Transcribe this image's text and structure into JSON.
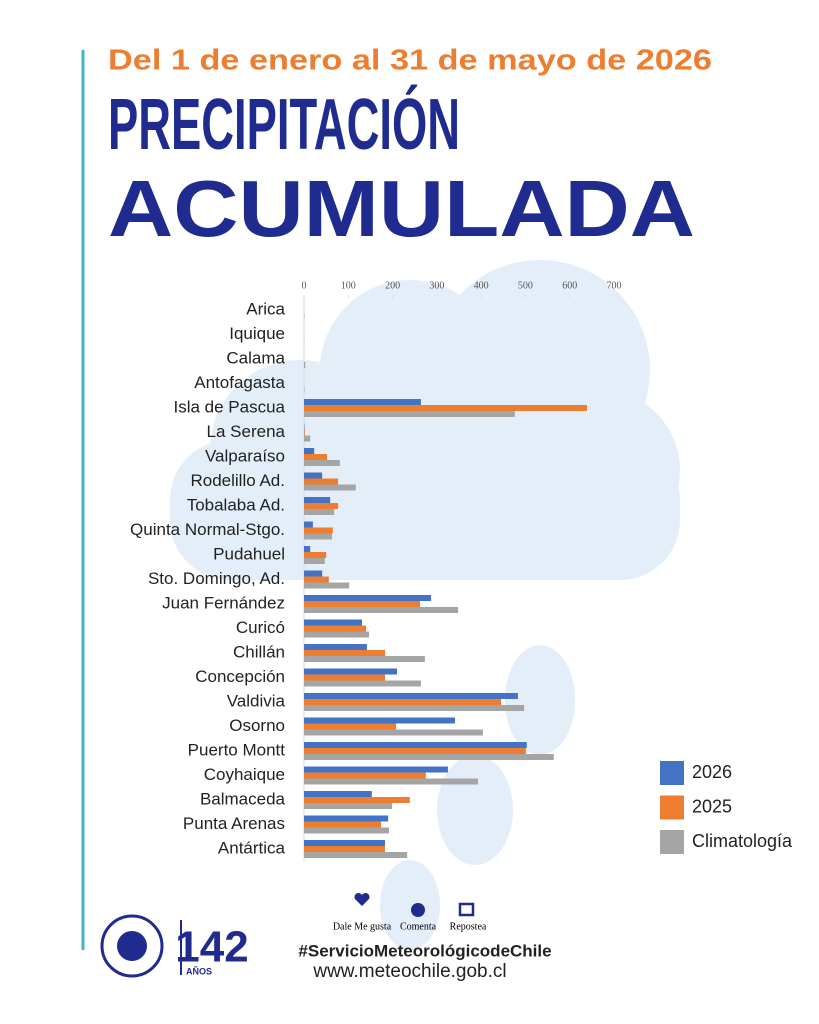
{
  "chart_data": {
    "type": "bar",
    "orientation": "horizontal",
    "subtitle": "Del 1 de enero al 31 de mayo de 2026",
    "title": "PRECIPITACIÓN",
    "title2": "ACUMULADA",
    "categories": [
      "Arica",
      "Iquique",
      "Calama",
      "Antofagasta",
      "Isla de Pascua",
      "La Serena",
      "Valparaíso",
      "Rodelillo Ad.",
      "Tobalaba Ad.",
      "Quinta Normal-Stgo.",
      "Pudahuel",
      "Sto. Domingo, Ad.",
      "Juan Fernández",
      "Curicó",
      "Chillán",
      "Concepción",
      "Valdivia",
      "Osorno",
      "Puerto Montt",
      "Coyhaique",
      "Balmaceda",
      "Punta Arenas",
      "Antártica"
    ],
    "series": [
      {
        "name": "2026",
        "color": "#4472c4",
        "values": [
          0,
          0,
          0,
          0,
          264,
          1,
          23,
          41,
          59,
          20,
          14,
          41,
          287,
          131,
          142,
          210,
          483,
          341,
          503,
          325,
          153,
          190,
          183
        ]
      },
      {
        "name": "2025",
        "color": "#ed7d31",
        "values": [
          0,
          0,
          0,
          0,
          639,
          2,
          52,
          77,
          77,
          65,
          50,
          56,
          262,
          140,
          183,
          183,
          445,
          208,
          501,
          275,
          239,
          174,
          183
        ]
      },
      {
        "name": "Climatología",
        "color": "#a5a5a5",
        "values": [
          1,
          0.5,
          3,
          1,
          476,
          14,
          81,
          117,
          68,
          63,
          47,
          102,
          348,
          147,
          273,
          264,
          497,
          404,
          564,
          393,
          199,
          192,
          233
        ]
      }
    ],
    "xlim": [
      0,
      700
    ],
    "xticks": [
      0,
      100,
      200,
      300,
      400,
      500,
      600,
      700
    ],
    "grid": false,
    "legend": "right"
  },
  "footer": {
    "years_number": "142",
    "years_word": "AÑOS",
    "like": "Dale Me gusta",
    "comment": "Comenta",
    "repost": "Repostea",
    "hashtag": "#ServicioMeteorológicodeChile",
    "url": "www.meteochile.gob.cl"
  }
}
